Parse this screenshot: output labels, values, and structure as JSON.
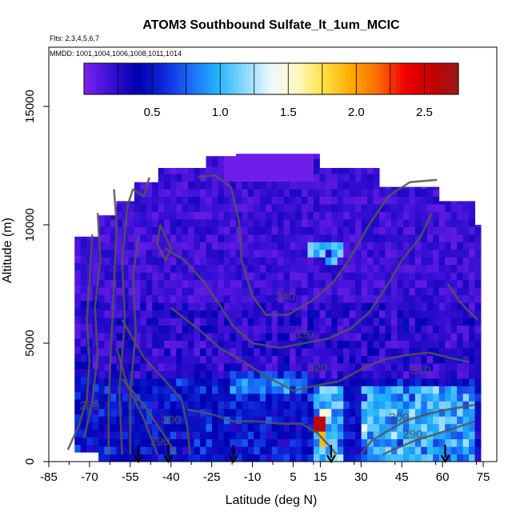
{
  "chart_data": {
    "type": "heatmap",
    "title": "ATOM3 Southbound Sulfate_lt_1um_MCIC",
    "flights_note": "Flts: 2,3,4,5,6,7",
    "dates_note": "MMDD: 1001,1004,1006,1008,1011,1014",
    "xlabel": "Latitude (deg N)",
    "ylabel": "Altitude (m)",
    "xlim": [
      -85,
      80
    ],
    "ylim": [
      0,
      17500
    ],
    "x_ticks": [
      -85,
      -70,
      -55,
      -40,
      -25,
      -10,
      5,
      15,
      30,
      45,
      60,
      75
    ],
    "y_ticks": [
      0,
      5000,
      10000,
      15000
    ],
    "colorbar": {
      "range": [
        0,
        2.75
      ],
      "ticks": [
        0.5,
        1.0,
        1.5,
        2.0,
        2.5
      ],
      "tick_labels": [
        "0.5",
        "1.0",
        "1.5",
        "2.0",
        "2.5"
      ],
      "colors": [
        "#7d22ee",
        "#3a10d6",
        "#0000b0",
        "#1028dc",
        "#1a6cf8",
        "#22b4ff",
        "#8ad8ff",
        "#eef8ff",
        "#fff8c0",
        "#ffe040",
        "#ffa800",
        "#ff6a00",
        "#f00000",
        "#c80000",
        "#9a1818"
      ]
    },
    "contour_labels": [
      {
        "text": "340",
        "lat": 2,
        "alt": 6800
      },
      {
        "text": "330",
        "lat": 9,
        "alt": 5200
      },
      {
        "text": "320",
        "lat": 14,
        "alt": 3800
      },
      {
        "text": "310",
        "lat": 52,
        "alt": 3700
      },
      {
        "text": "300",
        "lat": -40,
        "alt": 1600
      },
      {
        "text": "300",
        "lat": 44,
        "alt": 1700
      },
      {
        "text": "290",
        "lat": -44,
        "alt": 700
      },
      {
        "text": "290",
        "lat": 49,
        "alt": 1000
      },
      {
        "text": "280",
        "lat": -70,
        "alt": 2200
      }
    ],
    "sounding_latitudes": [
      -52,
      -41,
      -17,
      19,
      61
    ]
  }
}
